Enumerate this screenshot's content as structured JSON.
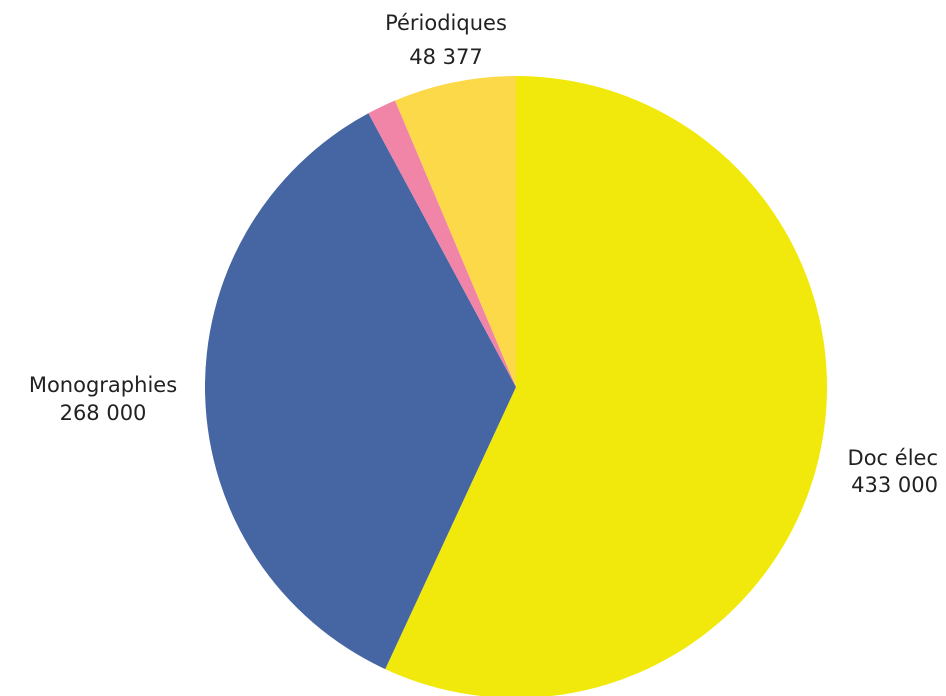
{
  "chart_data": {
    "type": "pie",
    "slices": [
      {
        "name": "Doc élec",
        "value_label": "433 000",
        "value": 433000,
        "color": "#f2e90c"
      },
      {
        "name": "Monographies",
        "value_label": "268 000",
        "value": 268000,
        "color": "#4665a3"
      },
      {
        "name": "",
        "value_label": "",
        "value": 11500,
        "color": "#f085a8"
      },
      {
        "name": "Périodiques",
        "value_label": "48 377",
        "value": 48377,
        "color": "#fbd949"
      }
    ],
    "start_angle": "12 o'clock",
    "direction": "clockwise",
    "legend": "none"
  }
}
